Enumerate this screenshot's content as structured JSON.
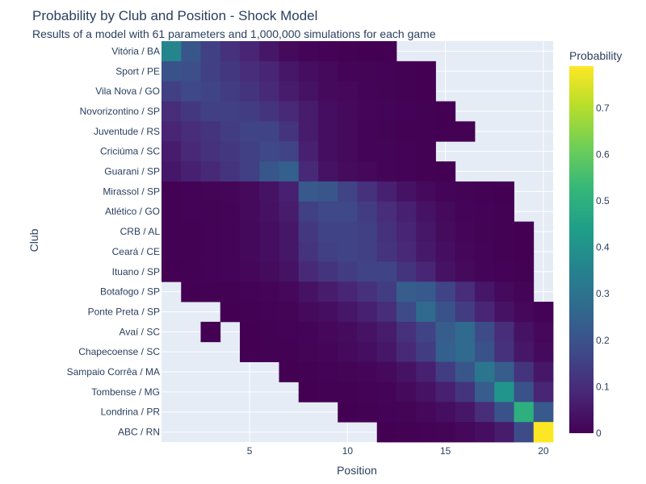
{
  "chart_data": {
    "type": "heatmap",
    "title": "Probability by Club and Position - Shock Model",
    "subtitle": "Results of a model with 61 parameters and 1,000,000 simulations for each game",
    "xlabel": "Position",
    "ylabel": "Club",
    "colorbar_title": "Probability",
    "colorscale": "Viridis",
    "zlim": [
      0,
      0.79
    ],
    "colorbar_ticks": [
      0,
      0.1,
      0.2,
      0.3,
      0.4,
      0.5,
      0.6,
      0.7
    ],
    "x": [
      1,
      2,
      3,
      4,
      5,
      6,
      7,
      8,
      9,
      10,
      11,
      12,
      13,
      14,
      15,
      16,
      17,
      18,
      19,
      20
    ],
    "x_ticks": [
      5,
      10,
      15,
      20
    ],
    "xlim": [
      0.5,
      20.5
    ],
    "grid": true,
    "legend_position": "right",
    "clubs": [
      "Vitória / BA",
      "Sport / PE",
      "Vila Nova / GO",
      "Novorizontino / SP",
      "Juventude / RS",
      "Criciúma / SC",
      "Guarani / SP",
      "Mirassol / SP",
      "Atlético / GO",
      "CRB / AL",
      "Ceará / CE",
      "Ituano / SP",
      "Botafogo / SP",
      "Ponte Preta / SP",
      "Avaí / SC",
      "Chapecoense / SC",
      "Sampaio Corrêa / MA",
      "Tombense / MG",
      "Londrina / PR",
      "ABC / RN"
    ],
    "z": [
      [
        0.36,
        0.21,
        0.15,
        0.11,
        0.08,
        0.05,
        0.02,
        0.01,
        0.005,
        0.003,
        0.001,
        0.001,
        null,
        null,
        null,
        null,
        null,
        null,
        null,
        null
      ],
      [
        0.2,
        0.19,
        0.15,
        0.13,
        0.1,
        0.08,
        0.05,
        0.03,
        0.02,
        0.01,
        0.008,
        0.004,
        0.002,
        0.001,
        null,
        null,
        null,
        null,
        null,
        null
      ],
      [
        0.15,
        0.17,
        0.16,
        0.14,
        0.12,
        0.09,
        0.06,
        0.04,
        0.02,
        0.015,
        0.01,
        0.006,
        0.003,
        0.001,
        null,
        null,
        null,
        null,
        null,
        null
      ],
      [
        0.1,
        0.13,
        0.15,
        0.15,
        0.14,
        0.12,
        0.09,
        0.06,
        0.03,
        0.02,
        0.012,
        0.007,
        0.004,
        0.002,
        0.001,
        null,
        null,
        null,
        null,
        null
      ],
      [
        0.08,
        0.1,
        0.12,
        0.14,
        0.16,
        0.16,
        0.12,
        0.06,
        0.03,
        0.02,
        0.01,
        0.006,
        0.003,
        0.002,
        0.001,
        0.001,
        null,
        null,
        null,
        null
      ],
      [
        0.06,
        0.09,
        0.11,
        0.13,
        0.15,
        0.17,
        0.16,
        0.07,
        0.03,
        0.02,
        0.01,
        0.007,
        0.004,
        0.002,
        null,
        null,
        null,
        null,
        null,
        null
      ],
      [
        0.05,
        0.07,
        0.09,
        0.12,
        0.15,
        0.21,
        0.24,
        0.09,
        0.04,
        0.025,
        0.015,
        0.009,
        0.005,
        0.003,
        0.001,
        null,
        null,
        null,
        null,
        null
      ],
      [
        0.003,
        0.005,
        0.008,
        0.012,
        0.02,
        0.04,
        0.07,
        0.22,
        0.21,
        0.16,
        0.11,
        0.07,
        0.04,
        0.02,
        0.01,
        0.006,
        0.003,
        0.001,
        null,
        null
      ],
      [
        0.002,
        0.004,
        0.006,
        0.01,
        0.02,
        0.035,
        0.06,
        0.15,
        0.17,
        0.17,
        0.14,
        0.1,
        0.07,
        0.04,
        0.02,
        0.01,
        0.005,
        0.002,
        null,
        null
      ],
      [
        0.002,
        0.003,
        0.005,
        0.009,
        0.018,
        0.03,
        0.05,
        0.13,
        0.16,
        0.16,
        0.15,
        0.11,
        0.08,
        0.05,
        0.025,
        0.012,
        0.006,
        0.003,
        0.001,
        null
      ],
      [
        0.002,
        0.003,
        0.005,
        0.009,
        0.017,
        0.03,
        0.05,
        0.12,
        0.15,
        0.16,
        0.15,
        0.12,
        0.09,
        0.055,
        0.03,
        0.014,
        0.007,
        0.003,
        0.001,
        null
      ],
      [
        0.001,
        0.002,
        0.004,
        0.007,
        0.013,
        0.022,
        0.04,
        0.09,
        0.12,
        0.14,
        0.16,
        0.16,
        0.12,
        0.08,
        0.04,
        0.02,
        0.01,
        0.004,
        0.002,
        null
      ],
      [
        null,
        0.001,
        0.002,
        0.003,
        0.005,
        0.01,
        0.015,
        0.04,
        0.06,
        0.08,
        0.11,
        0.14,
        0.23,
        0.22,
        0.16,
        0.1,
        0.05,
        0.02,
        0.008,
        null
      ],
      [
        null,
        null,
        null,
        0.001,
        0.002,
        0.004,
        0.008,
        0.02,
        0.03,
        0.05,
        0.07,
        0.1,
        0.18,
        0.27,
        0.2,
        0.14,
        0.08,
        0.04,
        0.015,
        0.005
      ],
      [
        null,
        null,
        0.001,
        null,
        0.001,
        0.002,
        0.004,
        0.01,
        0.015,
        0.025,
        0.04,
        0.06,
        0.11,
        0.16,
        0.23,
        0.27,
        0.18,
        0.1,
        0.04,
        0.015
      ],
      [
        null,
        null,
        null,
        null,
        0.001,
        0.002,
        0.003,
        0.008,
        0.012,
        0.02,
        0.03,
        0.05,
        0.09,
        0.14,
        0.24,
        0.27,
        0.2,
        0.11,
        0.05,
        0.02
      ],
      [
        null,
        null,
        null,
        null,
        null,
        null,
        0.001,
        0.003,
        0.005,
        0.008,
        0.012,
        0.02,
        0.04,
        0.07,
        0.14,
        0.21,
        0.31,
        0.23,
        0.12,
        0.05
      ],
      [
        null,
        null,
        null,
        null,
        null,
        null,
        null,
        0.001,
        0.002,
        0.003,
        0.005,
        0.01,
        0.02,
        0.04,
        0.07,
        0.12,
        0.23,
        0.41,
        0.2,
        0.08
      ],
      [
        null,
        null,
        null,
        null,
        null,
        null,
        null,
        null,
        null,
        0.001,
        0.002,
        0.004,
        0.008,
        0.015,
        0.03,
        0.05,
        0.1,
        0.2,
        0.5,
        0.22
      ],
      [
        null,
        null,
        null,
        null,
        null,
        null,
        null,
        null,
        null,
        null,
        null,
        0.001,
        0.002,
        0.004,
        0.008,
        0.015,
        0.03,
        0.06,
        0.18,
        0.79
      ]
    ]
  }
}
